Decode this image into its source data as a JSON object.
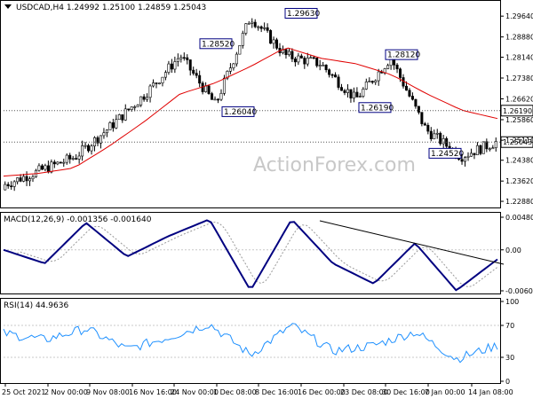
{
  "main_title": "USDCAD,H4  1.24992 1.25100 1.24859 1.25043",
  "watermark": "ActionForex.com",
  "colors": {
    "candle_up": "#ffffff",
    "candle_down": "#000000",
    "ma": "#e00000",
    "macd": "#000080",
    "signal": "#999999",
    "trend": "#000000",
    "rsi": "#1e90ff",
    "grid": "#c8c8c8",
    "callout_border": "#000080"
  },
  "price_axis": {
    "ticks": [
      "1.29640",
      "1.28880",
      "1.28140",
      "1.27380",
      "1.26620",
      "1.25860",
      "1.25110",
      "1.24380",
      "1.23620",
      "1.22880"
    ],
    "ylim": [
      1.2272,
      1.2984
    ]
  },
  "markers": [
    {
      "name": "level-1.26190",
      "text": "1.26190",
      "value": 1.2619
    },
    {
      "name": "level-1.25043",
      "text": "1.25043",
      "value": 1.25043
    }
  ],
  "callouts": [
    {
      "text": "1.28520",
      "value": 1.2852
    },
    {
      "text": "1.29630",
      "value": 1.2963
    },
    {
      "text": "1.28120",
      "value": 1.2812
    },
    {
      "text": "1.26040",
      "value": 1.2604
    },
    {
      "text": "1.26190",
      "value": 1.2619
    },
    {
      "text": "1.24520",
      "value": 1.2452
    }
  ],
  "macd": {
    "title": "MACD(12,26,9) -0.001356 -0.001640",
    "ticks": [
      "0.004809",
      "0.00",
      "-0.00605"
    ]
  },
  "rsi": {
    "title": "RSI(14) 44.9636",
    "ticks": [
      "100",
      "70",
      "30",
      "0"
    ]
  },
  "x_axis_labels": [
    "25 Oct 2021",
    "2 Nov 00:00",
    "9 Nov 08:00",
    "16 Nov 16:00",
    "24 Nov 00:00",
    "1 Dec 08:00",
    "8 Dec 16:00",
    "16 Dec 00:00",
    "23 Dec 08:00",
    "30 Dec 16:00",
    "7 Jan 00:00",
    "14 Jan 08:00"
  ],
  "chart_data": {
    "type": "candlestick",
    "title": "USDCAD,H4  1.24992 1.25100 1.24859 1.25043",
    "x": [
      "25 Oct 2021",
      "2 Nov 00:00",
      "9 Nov 08:00",
      "16 Nov 16:00",
      "24 Nov 00:00",
      "1 Dec 08:00",
      "8 Dec 16:00",
      "16 Dec 00:00",
      "23 Dec 08:00",
      "30 Dec 16:00",
      "7 Jan 00:00",
      "14 Jan 08:00"
    ],
    "close_keypoints": [
      1.235,
      1.24,
      1.245,
      1.256,
      1.268,
      1.282,
      1.264,
      1.2963,
      1.282,
      1.279,
      1.266,
      1.2812,
      1.255,
      1.2452,
      1.25043
    ],
    "ma_keypoints": [
      1.238,
      1.239,
      1.241,
      1.249,
      1.258,
      1.268,
      1.272,
      1.278,
      1.285,
      1.281,
      1.279,
      1.275,
      1.268,
      1.262,
      1.259
    ],
    "macd_keypoints": [
      0.0,
      -0.002,
      0.004,
      -0.001,
      0.002,
      0.0045,
      -0.006,
      0.0045,
      -0.002,
      -0.005,
      0.001,
      -0.006,
      -0.0014
    ],
    "rsi_keypoints": [
      60,
      52,
      66,
      40,
      55,
      72,
      33,
      70,
      38,
      45,
      62,
      28,
      45
    ],
    "ylim": [
      1.2272,
      1.2984
    ]
  }
}
